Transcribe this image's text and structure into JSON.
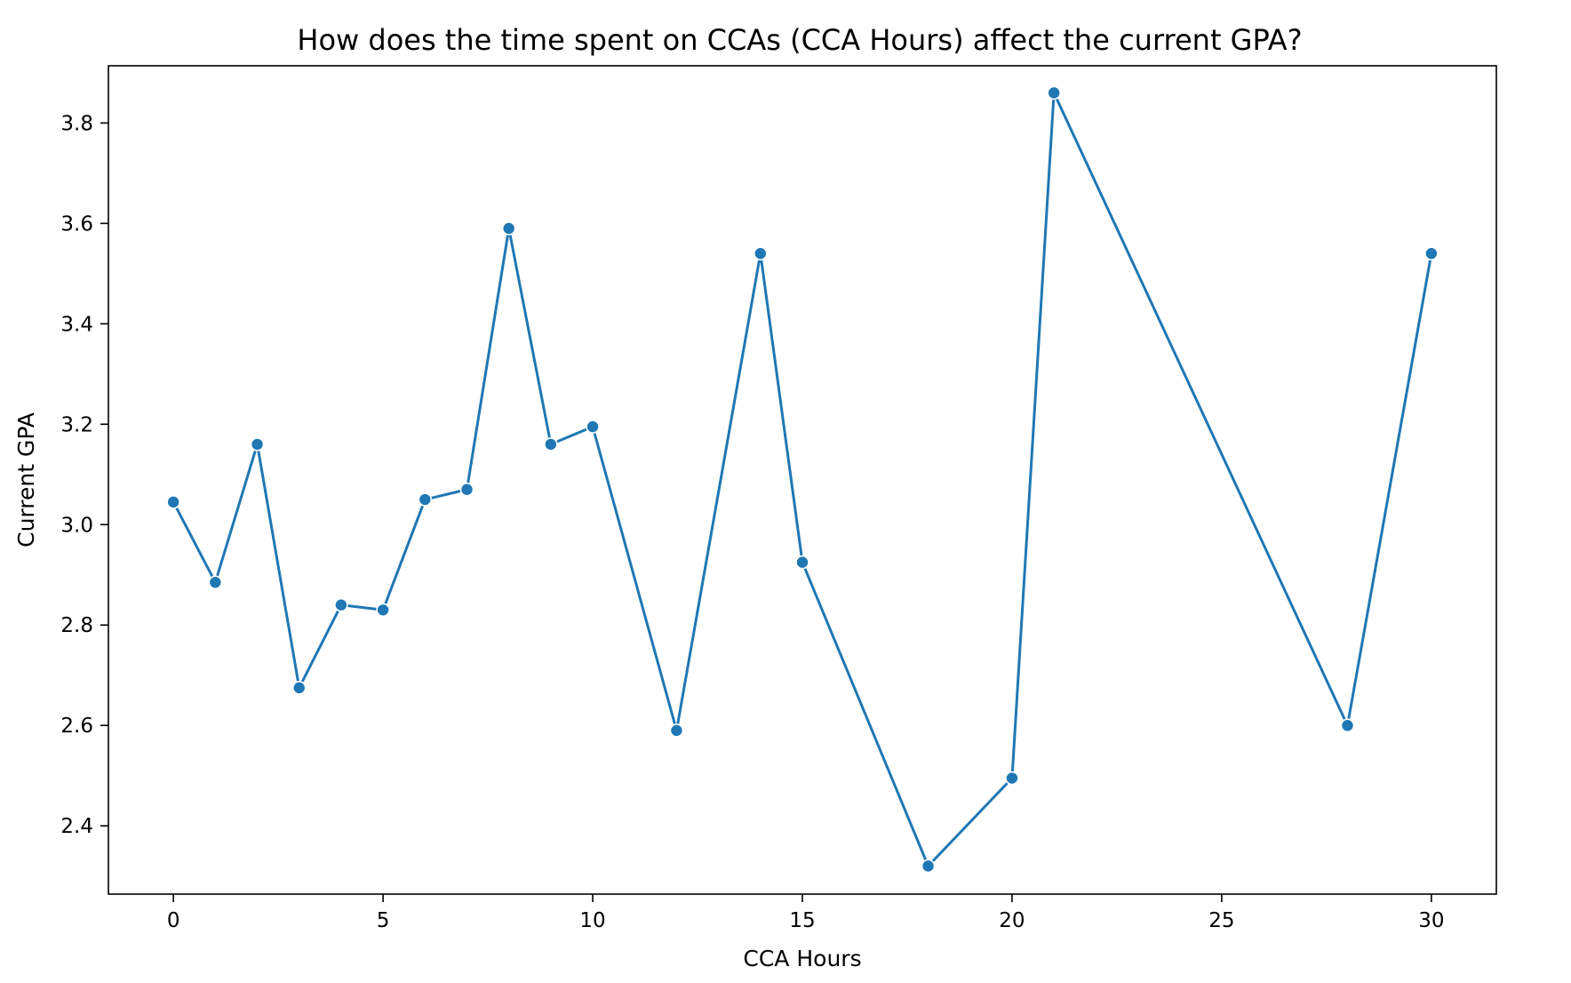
{
  "chart_data": {
    "type": "line",
    "title": "How does the time spent on CCAs (CCA Hours) affect the current GPA?",
    "xlabel": "CCA Hours",
    "ylabel": "Current GPA",
    "xlim": [
      -1.55,
      31.55
    ],
    "ylim": [
      2.264,
      3.914
    ],
    "xticks": [
      0,
      5,
      10,
      15,
      20,
      25,
      30
    ],
    "yticks": [
      2.4,
      2.6,
      2.8,
      3.0,
      3.2,
      3.4,
      3.6,
      3.8
    ],
    "grid": false,
    "legend": "none",
    "series": [
      {
        "color": "#1f77b4",
        "marker": "circle",
        "x": [
          0,
          1,
          2,
          3,
          4,
          5,
          6,
          7,
          8,
          9,
          10,
          12,
          14,
          15,
          18,
          20,
          21,
          28,
          30
        ],
        "y": [
          3.045,
          2.885,
          3.16,
          2.675,
          2.84,
          2.83,
          3.05,
          3.07,
          3.59,
          3.16,
          3.195,
          2.59,
          3.54,
          2.925,
          2.32,
          2.495,
          3.86,
          2.6,
          3.54
        ]
      }
    ]
  }
}
